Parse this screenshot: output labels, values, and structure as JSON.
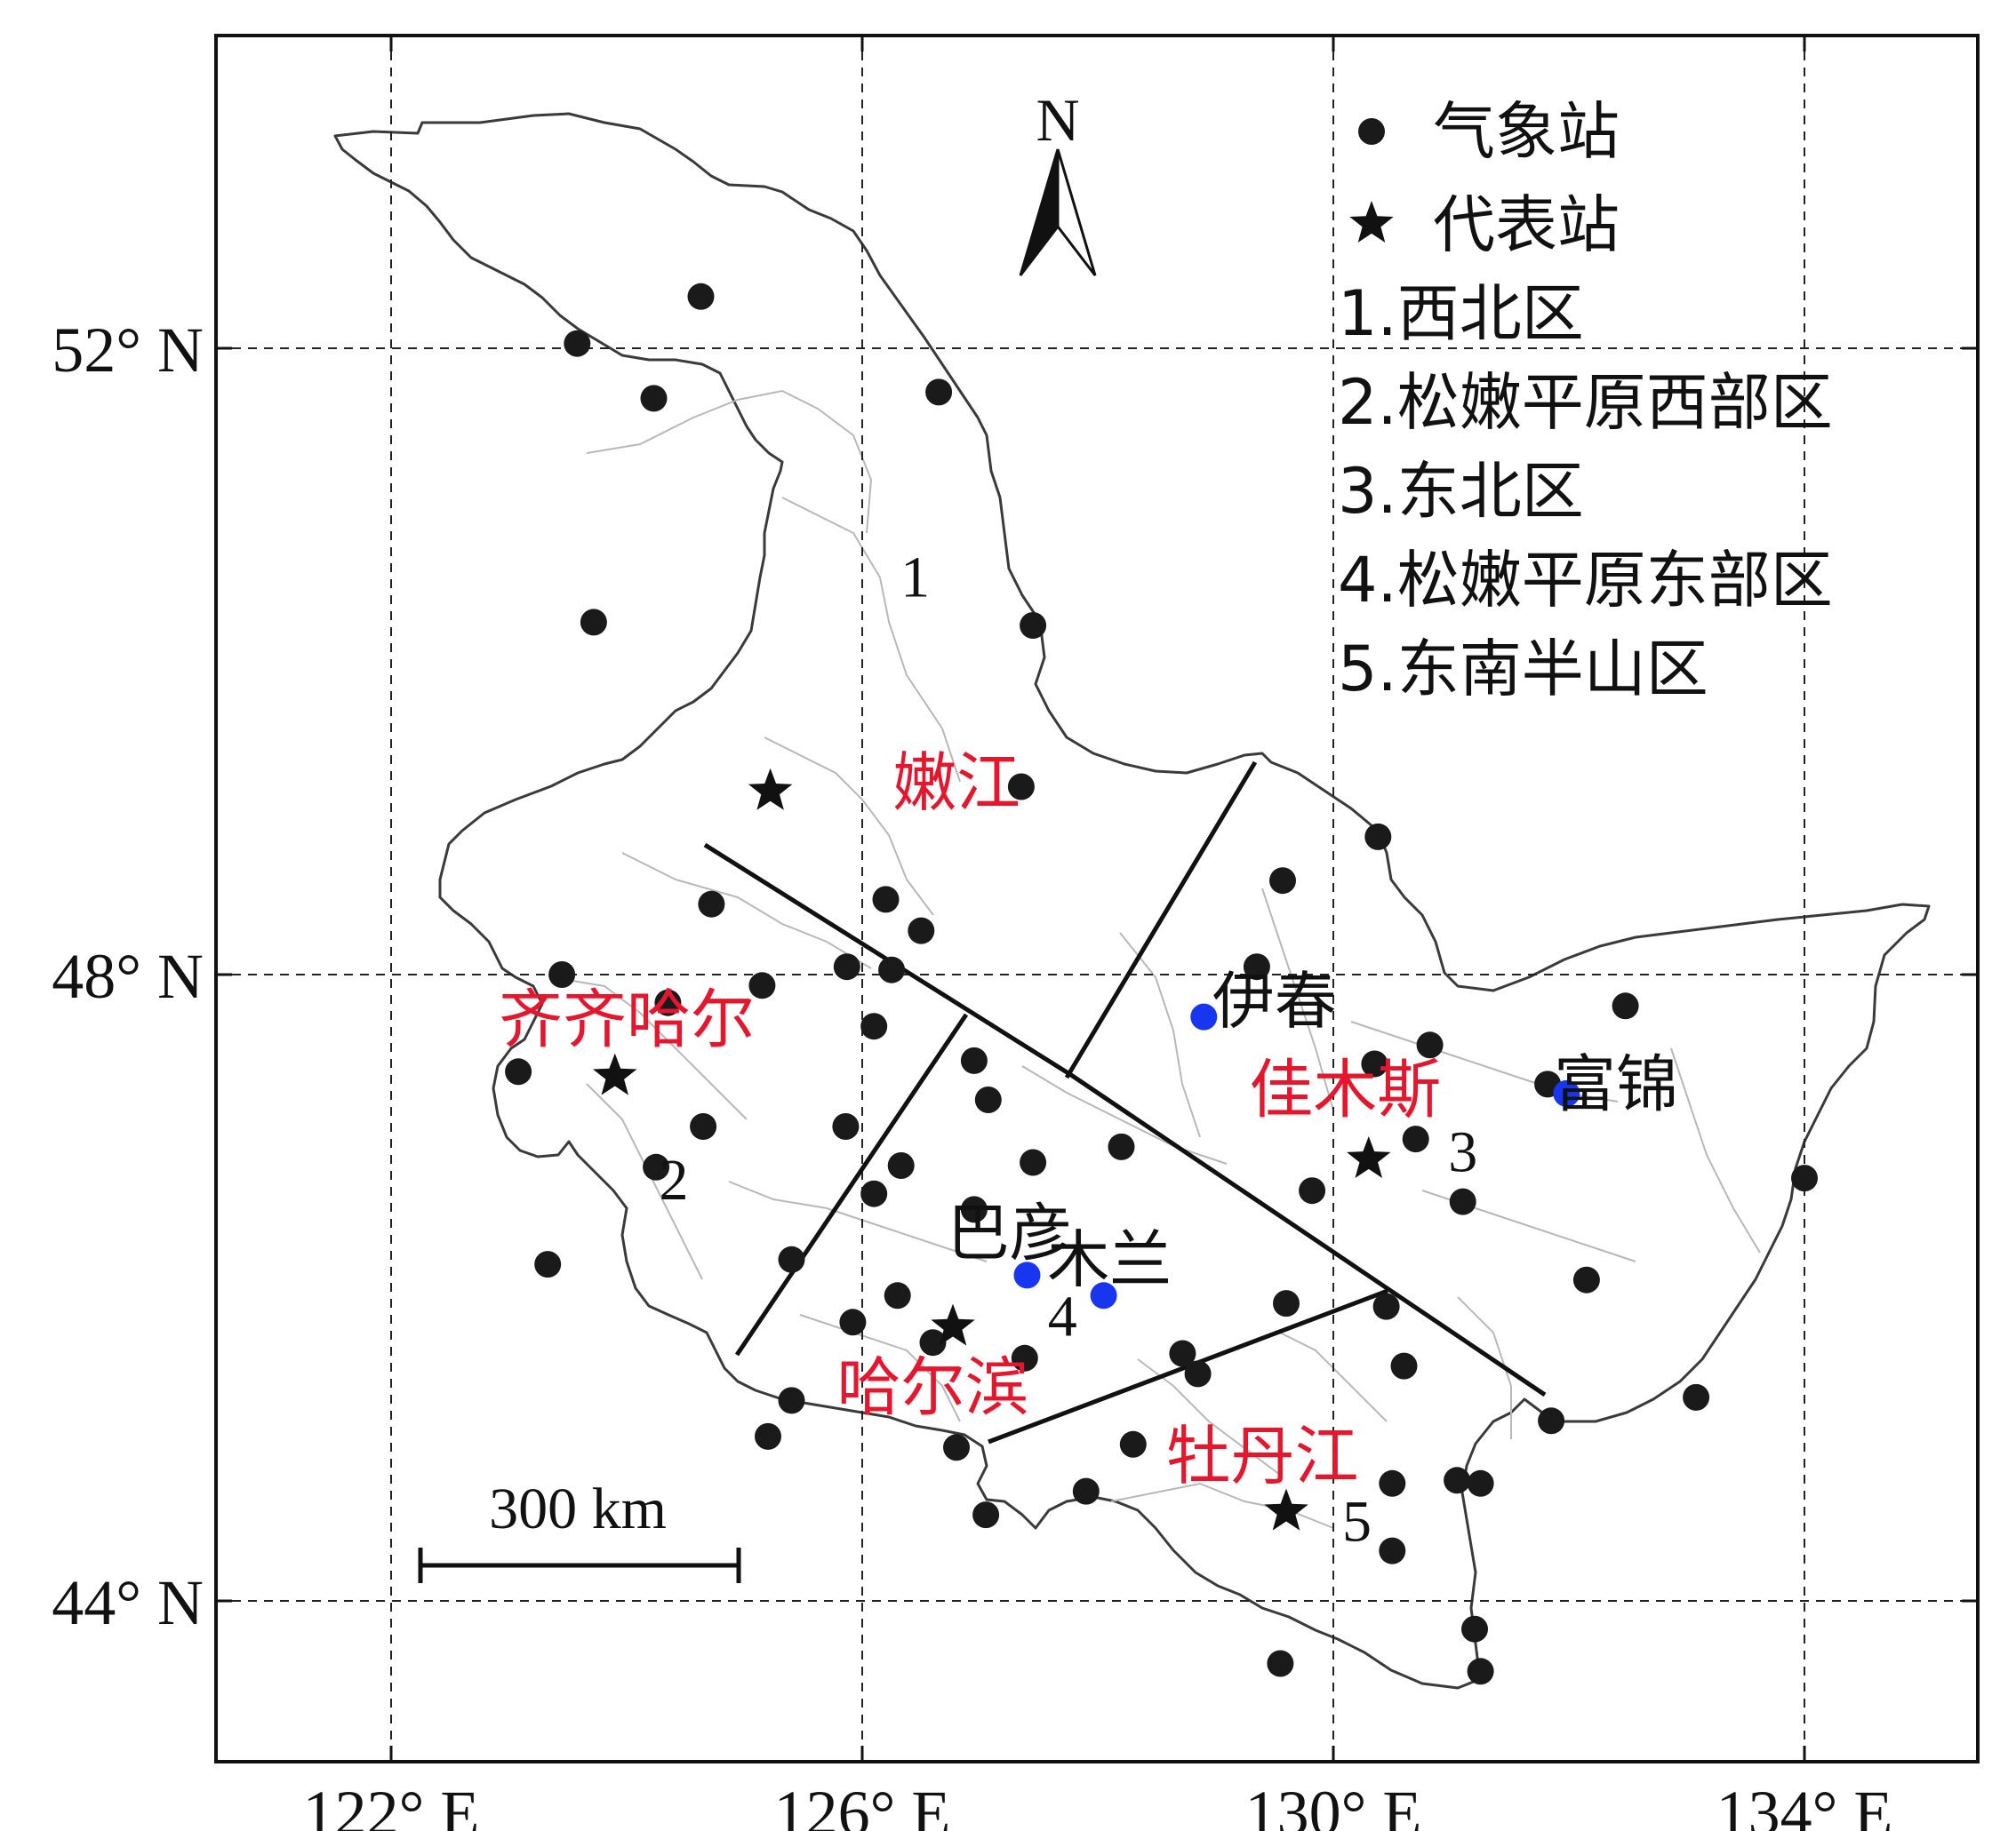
{
  "axes": {
    "x_ticks": [
      {
        "value": 122,
        "label": "122° E"
      },
      {
        "value": 126,
        "label": "126° E"
      },
      {
        "value": 130,
        "label": "130° E"
      },
      {
        "value": 134,
        "label": "134° E"
      }
    ],
    "y_ticks": [
      {
        "value": 52,
        "label": "52° N"
      },
      {
        "value": 48,
        "label": "48° N"
      },
      {
        "value": 44,
        "label": "44° N"
      }
    ],
    "lon_range": [
      120.5,
      135.5
    ],
    "lat_range": [
      42.9,
      53.9
    ],
    "grid": "dashed"
  },
  "north_arrow": {
    "label": "N",
    "icon": "north-arrow-icon"
  },
  "legend": {
    "items": [
      {
        "symbol": "dot",
        "label": "气象站"
      },
      {
        "symbol": "star",
        "label": "代表站"
      }
    ],
    "regions": [
      "1.西北区",
      "2.松嫩平原西部区",
      "3.东北区",
      "4.松嫩平原东部区",
      "5.东南半山区"
    ]
  },
  "region_numbers": [
    {
      "label": "1",
      "lon": 126.45,
      "lat": 50.55
    },
    {
      "label": "2",
      "lon": 124.4,
      "lat": 46.7
    },
    {
      "label": "3",
      "lon": 131.1,
      "lat": 46.88
    },
    {
      "label": "4",
      "lon": 127.7,
      "lat": 45.83
    },
    {
      "label": "5",
      "lon": 130.2,
      "lat": 44.52
    }
  ],
  "representative_stations": [
    {
      "name": "嫩江",
      "lon": 125.22,
      "lat": 49.17,
      "label_lon": 126.8,
      "label_lat": 49.23
    },
    {
      "name": "齐齐哈尔",
      "lon": 123.9,
      "lat": 47.35,
      "label_lon": 124.0,
      "label_lat": 47.72
    },
    {
      "name": "佳木斯",
      "lon": 130.3,
      "lat": 46.82,
      "label_lon": 130.1,
      "label_lat": 47.27
    },
    {
      "name": "哈尔滨",
      "lon": 126.77,
      "lat": 45.75,
      "label_lon": 126.6,
      "label_lat": 45.37
    },
    {
      "name": "牡丹江",
      "lon": 129.6,
      "lat": 44.57,
      "label_lon": 129.4,
      "label_lat": 44.93
    }
  ],
  "highlight_stations": [
    {
      "name": "伊春",
      "lon": 128.9,
      "lat": 47.73,
      "label_lon": 129.5,
      "label_lat": 47.83,
      "color": "#1836f0"
    },
    {
      "name": "富锦",
      "lon": 131.98,
      "lat": 47.24,
      "label_lon": 132.4,
      "label_lat": 47.3,
      "color": "#1836f0"
    },
    {
      "name": "巴彦",
      "lon": 127.4,
      "lat": 46.08,
      "label_lon": 127.25,
      "label_lat": 46.35,
      "color": "#1836f0"
    },
    {
      "name": "木兰",
      "lon": 128.05,
      "lat": 45.95,
      "label_lon": 128.1,
      "label_lat": 46.18,
      "color": "#1836f0"
    }
  ],
  "weather_stations": [
    [
      124.63,
      52.33
    ],
    [
      123.58,
      52.03
    ],
    [
      124.23,
      51.68
    ],
    [
      126.65,
      51.72
    ],
    [
      123.72,
      50.25
    ],
    [
      127.45,
      50.23
    ],
    [
      127.35,
      49.2
    ],
    [
      130.38,
      48.88
    ],
    [
      124.72,
      48.45
    ],
    [
      126.2,
      48.48
    ],
    [
      126.5,
      48.28
    ],
    [
      129.57,
      48.6
    ],
    [
      123.45,
      48.0
    ],
    [
      125.15,
      47.93
    ],
    [
      125.87,
      48.05
    ],
    [
      126.25,
      48.03
    ],
    [
      129.35,
      48.05
    ],
    [
      124.35,
      47.82
    ],
    [
      126.1,
      47.67
    ],
    [
      123.08,
      47.38
    ],
    [
      124.65,
      47.03
    ],
    [
      125.86,
      47.03
    ],
    [
      126.95,
      47.45
    ],
    [
      127.07,
      47.2
    ],
    [
      130.35,
      47.43
    ],
    [
      130.82,
      47.55
    ],
    [
      131.82,
      47.3
    ],
    [
      132.48,
      47.8
    ],
    [
      124.25,
      46.77
    ],
    [
      126.33,
      46.78
    ],
    [
      127.45,
      46.8
    ],
    [
      128.2,
      46.9
    ],
    [
      130.7,
      46.95
    ],
    [
      126.1,
      46.6
    ],
    [
      126.95,
      46.5
    ],
    [
      129.82,
      46.62
    ],
    [
      131.1,
      46.55
    ],
    [
      134.0,
      46.7
    ],
    [
      123.33,
      46.15
    ],
    [
      125.4,
      46.18
    ],
    [
      126.3,
      45.95
    ],
    [
      125.92,
      45.78
    ],
    [
      126.6,
      45.65
    ],
    [
      127.38,
      45.55
    ],
    [
      128.72,
      45.58
    ],
    [
      128.85,
      45.45
    ],
    [
      129.6,
      45.9
    ],
    [
      130.45,
      45.88
    ],
    [
      132.15,
      46.05
    ],
    [
      133.08,
      45.3
    ],
    [
      125.4,
      45.28
    ],
    [
      125.2,
      45.05
    ],
    [
      126.8,
      44.98
    ],
    [
      128.3,
      45.0
    ],
    [
      127.9,
      44.7
    ],
    [
      130.5,
      44.75
    ],
    [
      131.05,
      44.77
    ],
    [
      131.25,
      44.75
    ],
    [
      130.5,
      44.32
    ],
    [
      131.2,
      43.82
    ],
    [
      131.25,
      43.55
    ],
    [
      129.55,
      43.6
    ],
    [
      130.6,
      45.5
    ],
    [
      131.85,
      45.15
    ],
    [
      127.05,
      44.55
    ]
  ],
  "scale_bar": {
    "label": "300 km"
  }
}
